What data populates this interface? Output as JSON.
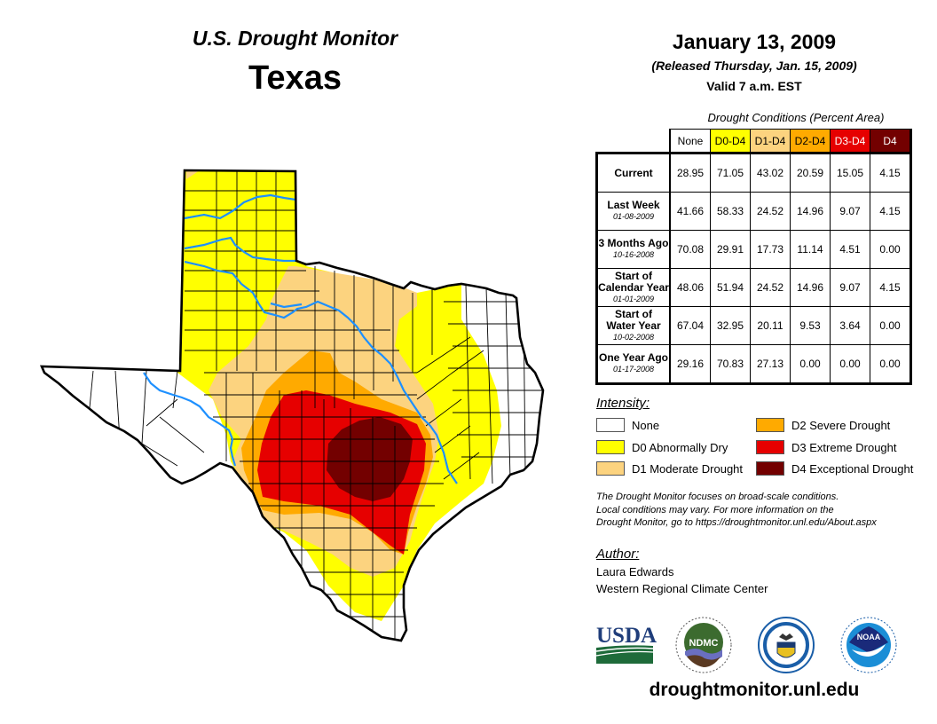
{
  "header": {
    "title": "U.S. Drought Monitor",
    "state": "Texas",
    "date": "January 13, 2009",
    "released": "(Released Thursday, Jan. 15, 2009)",
    "valid": "Valid 7 a.m. EST"
  },
  "table": {
    "caption": "Drought Conditions (Percent Area)",
    "columns": [
      {
        "label": "None",
        "bg": "#ffffff",
        "fg": "#000000"
      },
      {
        "label": "D0-D4",
        "bg": "#ffff00",
        "fg": "#000000"
      },
      {
        "label": "D1-D4",
        "bg": "#fcd37f",
        "fg": "#000000"
      },
      {
        "label": "D2-D4",
        "bg": "#ffaa00",
        "fg": "#000000"
      },
      {
        "label": "D3-D4",
        "bg": "#e60000",
        "fg": "#ffffff"
      },
      {
        "label": "D4",
        "bg": "#730000",
        "fg": "#ffffff"
      }
    ],
    "rows": [
      {
        "label": "Current",
        "date": "",
        "values": [
          "28.95",
          "71.05",
          "43.02",
          "20.59",
          "15.05",
          "4.15"
        ]
      },
      {
        "label": "Last Week",
        "date": "01-08-2009",
        "values": [
          "41.66",
          "58.33",
          "24.52",
          "14.96",
          "9.07",
          "4.15"
        ]
      },
      {
        "label": "3 Months Ago",
        "date": "10-16-2008",
        "values": [
          "70.08",
          "29.91",
          "17.73",
          "11.14",
          "4.51",
          "0.00"
        ]
      },
      {
        "label": "Start of Calendar Year",
        "date": "01-01-2009",
        "values": [
          "48.06",
          "51.94",
          "24.52",
          "14.96",
          "9.07",
          "4.15"
        ]
      },
      {
        "label": "Start of Water Year",
        "date": "10-02-2008",
        "values": [
          "67.04",
          "32.95",
          "20.11",
          "9.53",
          "3.64",
          "0.00"
        ]
      },
      {
        "label": "One Year Ago",
        "date": "01-17-2008",
        "values": [
          "29.16",
          "70.83",
          "27.13",
          "0.00",
          "0.00",
          "0.00"
        ]
      }
    ]
  },
  "legend": {
    "title": "Intensity:",
    "items": [
      {
        "label": "None",
        "color": "#ffffff"
      },
      {
        "label": "D0 Abnormally Dry",
        "color": "#ffff00"
      },
      {
        "label": "D1 Moderate Drought",
        "color": "#fcd37f"
      },
      {
        "label": "D2 Severe Drought",
        "color": "#ffaa00"
      },
      {
        "label": "D3 Extreme Drought",
        "color": "#e60000"
      },
      {
        "label": "D4 Exceptional Drought",
        "color": "#730000"
      }
    ]
  },
  "disclaimer": {
    "line1": "The Drought Monitor focuses on broad-scale conditions.",
    "line2": "Local conditions may vary. For more information on the",
    "line3": "Drought Monitor, go to https://droughtmonitor.unl.edu/About.aspx"
  },
  "author": {
    "title": "Author:",
    "name": "Laura Edwards",
    "org": "Western Regional Climate Center"
  },
  "logos": {
    "usda": "USDA",
    "ndmc": "NDMC",
    "noaa": "NOAA",
    "commerce": "Department of Commerce seal"
  },
  "website": "droughtmonitor.unl.edu",
  "colors": {
    "river": "#1e90ff",
    "border": "#000000"
  }
}
